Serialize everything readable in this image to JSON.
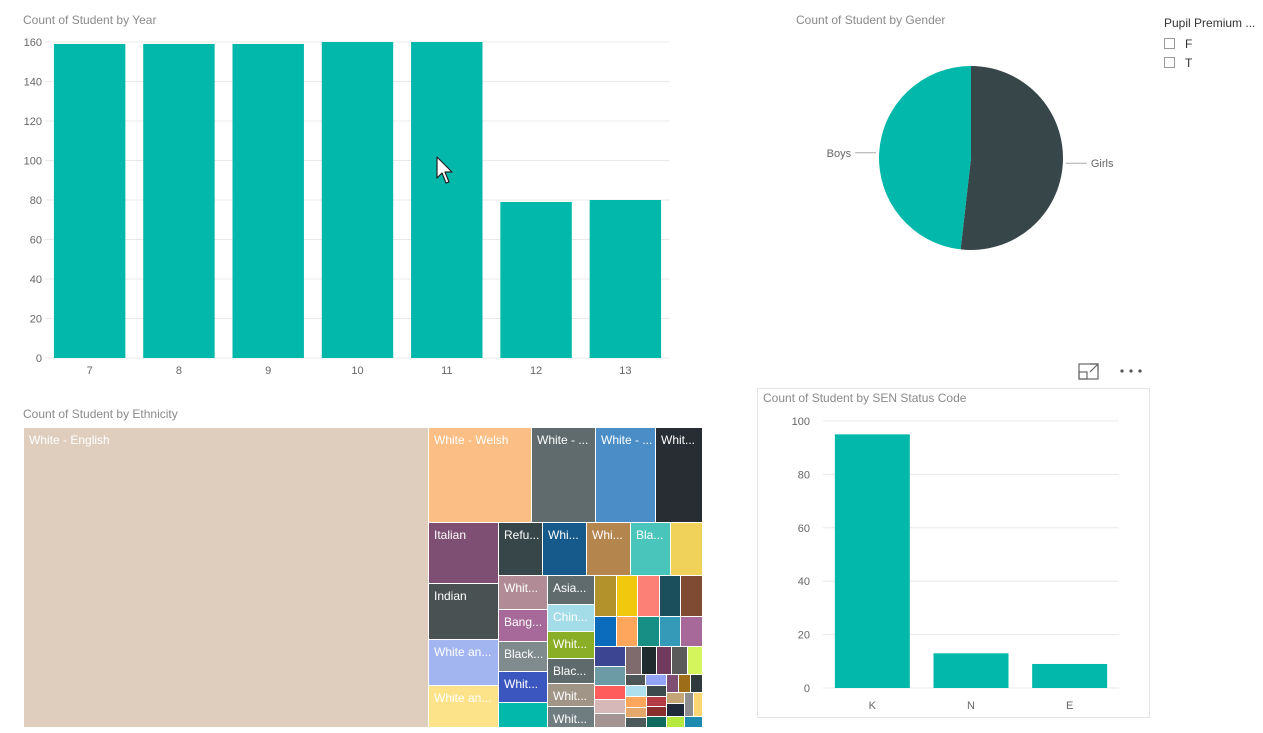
{
  "year_chart": {
    "title": "Count of Student by Year"
  },
  "gender_chart": {
    "title": "Count of Student by Gender"
  },
  "ethnicity_chart": {
    "title": "Count of Student by Ethnicity"
  },
  "sen_chart": {
    "title": "Count of Student by SEN Status Code"
  },
  "slicer": {
    "title": "Pupil Premium ...",
    "items": [
      {
        "label": "F",
        "checked": false
      },
      {
        "label": "T",
        "checked": false
      }
    ]
  },
  "header_icons": {
    "focus_mode": "focus-mode-icon",
    "more_options": "more-options-icon"
  },
  "colors": {
    "teal": "#01B8AA",
    "dark": "#374649",
    "grid": "#e8e8e8"
  },
  "chart_data": [
    {
      "type": "bar",
      "title": "Count of Student by Year",
      "categories": [
        "7",
        "8",
        "9",
        "10",
        "11",
        "12",
        "13"
      ],
      "values": [
        159,
        159,
        159,
        160,
        160,
        79,
        80
      ],
      "yticks": [
        0,
        20,
        40,
        60,
        80,
        100,
        120,
        140,
        160
      ],
      "ylim": [
        0,
        160
      ],
      "grid": true,
      "color": "#01B8AA"
    },
    {
      "type": "pie",
      "title": "Count of Student by Gender",
      "labels": [
        "Girls",
        "Boys"
      ],
      "values": [
        51.8,
        48.2
      ],
      "colors": [
        "#374649",
        "#01B8AA"
      ]
    },
    {
      "type": "treemap",
      "title": "Count of Student by Ethnicity",
      "cells": [
        {
          "label": "White - English",
          "color": "#DFCEBE"
        },
        {
          "label": "White - Welsh",
          "color": "#FBBE85"
        },
        {
          "label": "White - ...",
          "color": "#5F6B6D"
        },
        {
          "label": "White - ...",
          "color": "#4A8DC7"
        },
        {
          "label": "Whit...",
          "color": "#282C33"
        },
        {
          "label": "Italian",
          "color": "#7E4F73"
        },
        {
          "label": "Refu...",
          "color": "#374649"
        },
        {
          "label": "Whi...",
          "color": "#155A8A"
        },
        {
          "label": "Whi...",
          "color": "#B5854E"
        },
        {
          "label": "Bla...",
          "color": "#4AC5BB"
        },
        {
          "label": "",
          "color": "#F0D15A"
        },
        {
          "label": "Indian",
          "color": "#4A5152"
        },
        {
          "label": "Whit...",
          "color": "#B18B95"
        },
        {
          "label": "Asia...",
          "color": "#5F6B6D"
        },
        {
          "label": "Chin...",
          "color": "#A4DCE8"
        },
        {
          "label": "Bang...",
          "color": "#A66999"
        },
        {
          "label": "Whit...",
          "color": "#8AAE26"
        },
        {
          "label": "White an...",
          "color": "#A3B5F0"
        },
        {
          "label": "Black...",
          "color": "#7F8B8D"
        },
        {
          "label": "Blac...",
          "color": "#5E6A6B"
        },
        {
          "label": "Whit...",
          "color": "#3B56BF"
        },
        {
          "label": "Whit...",
          "color": "#A19588"
        },
        {
          "label": "White an...",
          "color": "#FCE289"
        },
        {
          "label": "Whit...",
          "color": "#6F7C80"
        }
      ]
    },
    {
      "type": "bar",
      "title": "Count of Student by SEN Status Code",
      "categories": [
        "K",
        "N",
        "E"
      ],
      "values": [
        95,
        13,
        9
      ],
      "yticks": [
        0,
        20,
        40,
        60,
        80,
        100
      ],
      "ylim": [
        0,
        100
      ],
      "grid": true,
      "color": "#01B8AA"
    }
  ]
}
